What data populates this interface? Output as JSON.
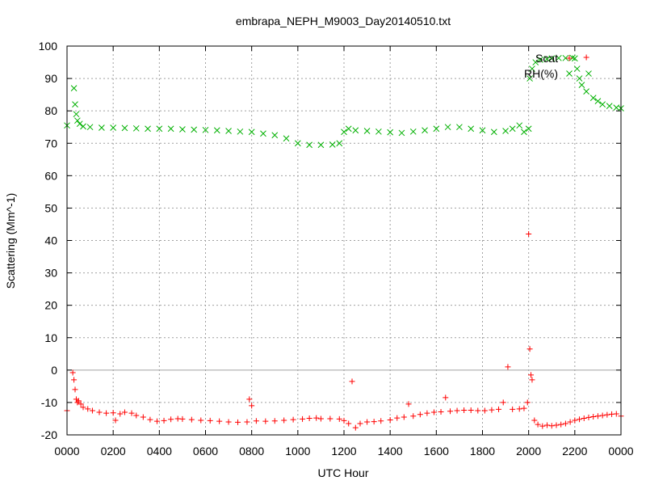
{
  "chart_data": {
    "type": "scatter",
    "title": "embrapa_NEPH_M9003_Day20140510.txt",
    "xlabel": "UTC Hour",
    "ylabel": "Scattering (Mm^-1)",
    "xlim": [
      0,
      24
    ],
    "ylim": [
      -20,
      100
    ],
    "x_ticks": [
      0,
      2,
      4,
      6,
      8,
      10,
      12,
      14,
      16,
      18,
      20,
      22,
      24
    ],
    "x_tick_labels": [
      "0000",
      "0200",
      "0400",
      "0600",
      "0800",
      "1000",
      "1200",
      "1400",
      "1600",
      "1800",
      "2000",
      "2200",
      "0000"
    ],
    "y_ticks": [
      -20,
      -10,
      0,
      10,
      20,
      30,
      40,
      50,
      60,
      70,
      80,
      90,
      100
    ],
    "grid": true,
    "zero_line": true,
    "legend_position": "top-right",
    "series": [
      {
        "name": "Scat",
        "marker": "plus",
        "color": "#ff0000",
        "points": [
          [
            0.0,
            -12.5
          ],
          [
            0.25,
            -0.8
          ],
          [
            0.3,
            -3
          ],
          [
            0.35,
            -6
          ],
          [
            0.4,
            -9
          ],
          [
            0.45,
            -10
          ],
          [
            0.5,
            -9.5
          ],
          [
            0.6,
            -10.5
          ],
          [
            0.7,
            -11.5
          ],
          [
            0.9,
            -12
          ],
          [
            1.1,
            -12.5
          ],
          [
            1.4,
            -13
          ],
          [
            1.7,
            -13.3
          ],
          [
            2.0,
            -13.2
          ],
          [
            2.1,
            -15.5
          ],
          [
            2.3,
            -13.5
          ],
          [
            2.5,
            -13
          ],
          [
            2.8,
            -13.3
          ],
          [
            3.0,
            -14.0
          ],
          [
            3.3,
            -14.5
          ],
          [
            3.6,
            -15.3
          ],
          [
            3.9,
            -15.8
          ],
          [
            4.2,
            -15.6
          ],
          [
            4.5,
            -15.2
          ],
          [
            4.8,
            -15.0
          ],
          [
            5.0,
            -15.1
          ],
          [
            5.4,
            -15.3
          ],
          [
            5.8,
            -15.5
          ],
          [
            6.2,
            -15.6
          ],
          [
            6.6,
            -15.8
          ],
          [
            7.0,
            -16.0
          ],
          [
            7.4,
            -16.1
          ],
          [
            7.8,
            -16.0
          ],
          [
            7.9,
            -9
          ],
          [
            8.0,
            -11
          ],
          [
            8.2,
            -15.7
          ],
          [
            8.6,
            -15.8
          ],
          [
            9.0,
            -15.7
          ],
          [
            9.4,
            -15.5
          ],
          [
            9.8,
            -15.3
          ],
          [
            10.2,
            -15.1
          ],
          [
            10.5,
            -14.9
          ],
          [
            10.8,
            -14.8
          ],
          [
            11.0,
            -15.0
          ],
          [
            11.4,
            -15.0
          ],
          [
            11.8,
            -15.1
          ],
          [
            12.0,
            -15.6
          ],
          [
            12.2,
            -16.5
          ],
          [
            12.35,
            -3.5
          ],
          [
            12.5,
            -17.8
          ],
          [
            12.7,
            -16.5
          ],
          [
            13.0,
            -16.0
          ],
          [
            13.3,
            -15.9
          ],
          [
            13.6,
            -15.7
          ],
          [
            14.0,
            -15.4
          ],
          [
            14.3,
            -14.8
          ],
          [
            14.6,
            -14.5
          ],
          [
            14.8,
            -10.5
          ],
          [
            15.0,
            -14.2
          ],
          [
            15.3,
            -13.7
          ],
          [
            15.6,
            -13.3
          ],
          [
            15.9,
            -13.0
          ],
          [
            16.2,
            -12.9
          ],
          [
            16.4,
            -8.5
          ],
          [
            16.6,
            -12.7
          ],
          [
            16.9,
            -12.5
          ],
          [
            17.2,
            -12.4
          ],
          [
            17.5,
            -12.4
          ],
          [
            17.8,
            -12.5
          ],
          [
            18.1,
            -12.5
          ],
          [
            18.4,
            -12.3
          ],
          [
            18.7,
            -12.1
          ],
          [
            18.9,
            -10.0
          ],
          [
            19.1,
            1.0
          ],
          [
            19.3,
            -12.1
          ],
          [
            19.6,
            -12.0
          ],
          [
            19.8,
            -11.8
          ],
          [
            19.95,
            -10
          ],
          [
            20.0,
            42
          ],
          [
            20.05,
            6.5
          ],
          [
            20.1,
            -1.5
          ],
          [
            20.15,
            -3
          ],
          [
            20.25,
            -15.5
          ],
          [
            20.4,
            -16.8
          ],
          [
            20.6,
            -17.3
          ],
          [
            20.8,
            -17.0
          ],
          [
            21.0,
            -17.2
          ],
          [
            21.2,
            -17.0
          ],
          [
            21.4,
            -16.8
          ],
          [
            21.6,
            -16.5
          ],
          [
            21.8,
            -16.0
          ],
          [
            22.0,
            -15.5
          ],
          [
            22.2,
            -15.2
          ],
          [
            22.4,
            -14.9
          ],
          [
            22.6,
            -14.6
          ],
          [
            22.8,
            -14.4
          ],
          [
            23.0,
            -14.2
          ],
          [
            23.2,
            -14.0
          ],
          [
            23.4,
            -13.8
          ],
          [
            23.6,
            -13.6
          ],
          [
            23.8,
            -13.5
          ],
          [
            24.0,
            -14.2
          ],
          [
            22.5,
            96.5
          ]
        ]
      },
      {
        "name": "RH(%)",
        "marker": "cross",
        "color": "#00b000",
        "points": [
          [
            0.0,
            75.5
          ],
          [
            0.3,
            87
          ],
          [
            0.35,
            82
          ],
          [
            0.4,
            79
          ],
          [
            0.45,
            77
          ],
          [
            0.55,
            76
          ],
          [
            0.7,
            75.2
          ],
          [
            1.0,
            75
          ],
          [
            1.5,
            74.8
          ],
          [
            2.0,
            74.8
          ],
          [
            2.5,
            74.7
          ],
          [
            3.0,
            74.6
          ],
          [
            3.5,
            74.5
          ],
          [
            4.0,
            74.5
          ],
          [
            4.5,
            74.5
          ],
          [
            5.0,
            74.3
          ],
          [
            5.5,
            74.2
          ],
          [
            6.0,
            74.1
          ],
          [
            6.5,
            74.0
          ],
          [
            7.0,
            73.8
          ],
          [
            7.5,
            73.6
          ],
          [
            8.0,
            73.5
          ],
          [
            8.5,
            73.0
          ],
          [
            9.0,
            72.5
          ],
          [
            9.5,
            71.5
          ],
          [
            10.0,
            70
          ],
          [
            10.5,
            69.5
          ],
          [
            11.0,
            69.5
          ],
          [
            11.5,
            69.6
          ],
          [
            11.8,
            70
          ],
          [
            12.0,
            73.5
          ],
          [
            12.2,
            74.5
          ],
          [
            12.5,
            74.0
          ],
          [
            13.0,
            73.8
          ],
          [
            13.5,
            73.6
          ],
          [
            14.0,
            73.4
          ],
          [
            14.5,
            73.2
          ],
          [
            15.0,
            73.6
          ],
          [
            15.5,
            74.0
          ],
          [
            16.0,
            74.5
          ],
          [
            16.5,
            75.0
          ],
          [
            17.0,
            75.0
          ],
          [
            17.5,
            74.5
          ],
          [
            18.0,
            74.0
          ],
          [
            18.5,
            73.5
          ],
          [
            19.0,
            73.8
          ],
          [
            19.3,
            74.5
          ],
          [
            19.6,
            75.5
          ],
          [
            19.8,
            73.5
          ],
          [
            20.0,
            74.5
          ],
          [
            20.05,
            90
          ],
          [
            20.15,
            93
          ],
          [
            20.3,
            95
          ],
          [
            20.5,
            95.8
          ],
          [
            20.8,
            96.0
          ],
          [
            21.0,
            96.2
          ],
          [
            21.3,
            96.3
          ],
          [
            21.6,
            96.3
          ],
          [
            21.9,
            96.4
          ],
          [
            22.0,
            96.2
          ],
          [
            22.1,
            93
          ],
          [
            22.2,
            90
          ],
          [
            22.3,
            88
          ],
          [
            22.5,
            86
          ],
          [
            22.6,
            91.5
          ],
          [
            22.8,
            84
          ],
          [
            23.0,
            83
          ],
          [
            23.2,
            82
          ],
          [
            23.5,
            81.5
          ],
          [
            23.8,
            81.0
          ],
          [
            24.0,
            80.8
          ]
        ]
      }
    ]
  }
}
